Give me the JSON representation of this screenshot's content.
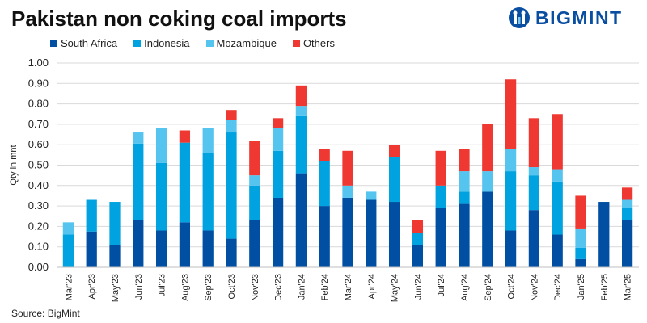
{
  "chart_data": {
    "type": "bar",
    "stacked": true,
    "title": "Pakistan non coking coal imports",
    "ylabel": "Qty in mnt",
    "xlabel": "",
    "ylim": [
      0,
      1.0
    ],
    "yticks": [
      "0.00",
      "0.10",
      "0.20",
      "0.30",
      "0.40",
      "0.50",
      "0.60",
      "0.70",
      "0.80",
      "0.90",
      "1.00"
    ],
    "grid": true,
    "legend_position": "top",
    "categories": [
      "Mar'23",
      "Apr'23",
      "May'23",
      "Jun'23",
      "Jul'23",
      "Aug'23",
      "Sep'23",
      "Oct'23",
      "Nov'23",
      "Dec'23",
      "Jan'24",
      "Feb'24",
      "Mar'24",
      "Apr'24",
      "May'24",
      "Jun'24",
      "Jul'24",
      "Aug'24",
      "Sep'24",
      "Oct'24",
      "Nov'24",
      "Dec'24",
      "Jan'25",
      "Feb'25",
      "Mar'25"
    ],
    "series": [
      {
        "name": "South Africa",
        "color": "#004fa3",
        "values": [
          0,
          0.175,
          0.11,
          0.23,
          0.18,
          0.22,
          0.18,
          0.14,
          0.23,
          0.34,
          0.46,
          0.3,
          0.34,
          0.33,
          0.32,
          0.11,
          0.29,
          0.31,
          0.37,
          0.18,
          0.28,
          0.16,
          0.04,
          0.32,
          0.23
        ]
      },
      {
        "name": "Indonesia",
        "color": "#00a3e0",
        "values": [
          0.16,
          0.155,
          0.21,
          0.375,
          0.33,
          0.39,
          0.38,
          0.52,
          0.17,
          0.23,
          0.28,
          0.22,
          0,
          0,
          0.22,
          0.06,
          0.11,
          0.06,
          0,
          0.29,
          0.17,
          0.26,
          0.055,
          0,
          0.06
        ]
      },
      {
        "name": "Mozambique",
        "color": "#55c5f0",
        "values": [
          0.06,
          0,
          0,
          0.055,
          0.17,
          0,
          0.12,
          0.06,
          0.05,
          0.11,
          0.05,
          0,
          0.06,
          0.04,
          0,
          0,
          0,
          0.1,
          0.1,
          0.11,
          0.04,
          0.06,
          0.095,
          0,
          0.04
        ]
      },
      {
        "name": "Others",
        "color": "#ee3831",
        "values": [
          0,
          0,
          0,
          0,
          0,
          0.06,
          0,
          0.05,
          0.17,
          0.05,
          0.1,
          0.06,
          0.17,
          0,
          0.06,
          0.06,
          0.17,
          0.11,
          0.23,
          0.34,
          0.24,
          0.27,
          0.16,
          0,
          0.06
        ]
      }
    ],
    "source": "Source: BigMint"
  },
  "logo": {
    "text": "BIGMINT"
  }
}
